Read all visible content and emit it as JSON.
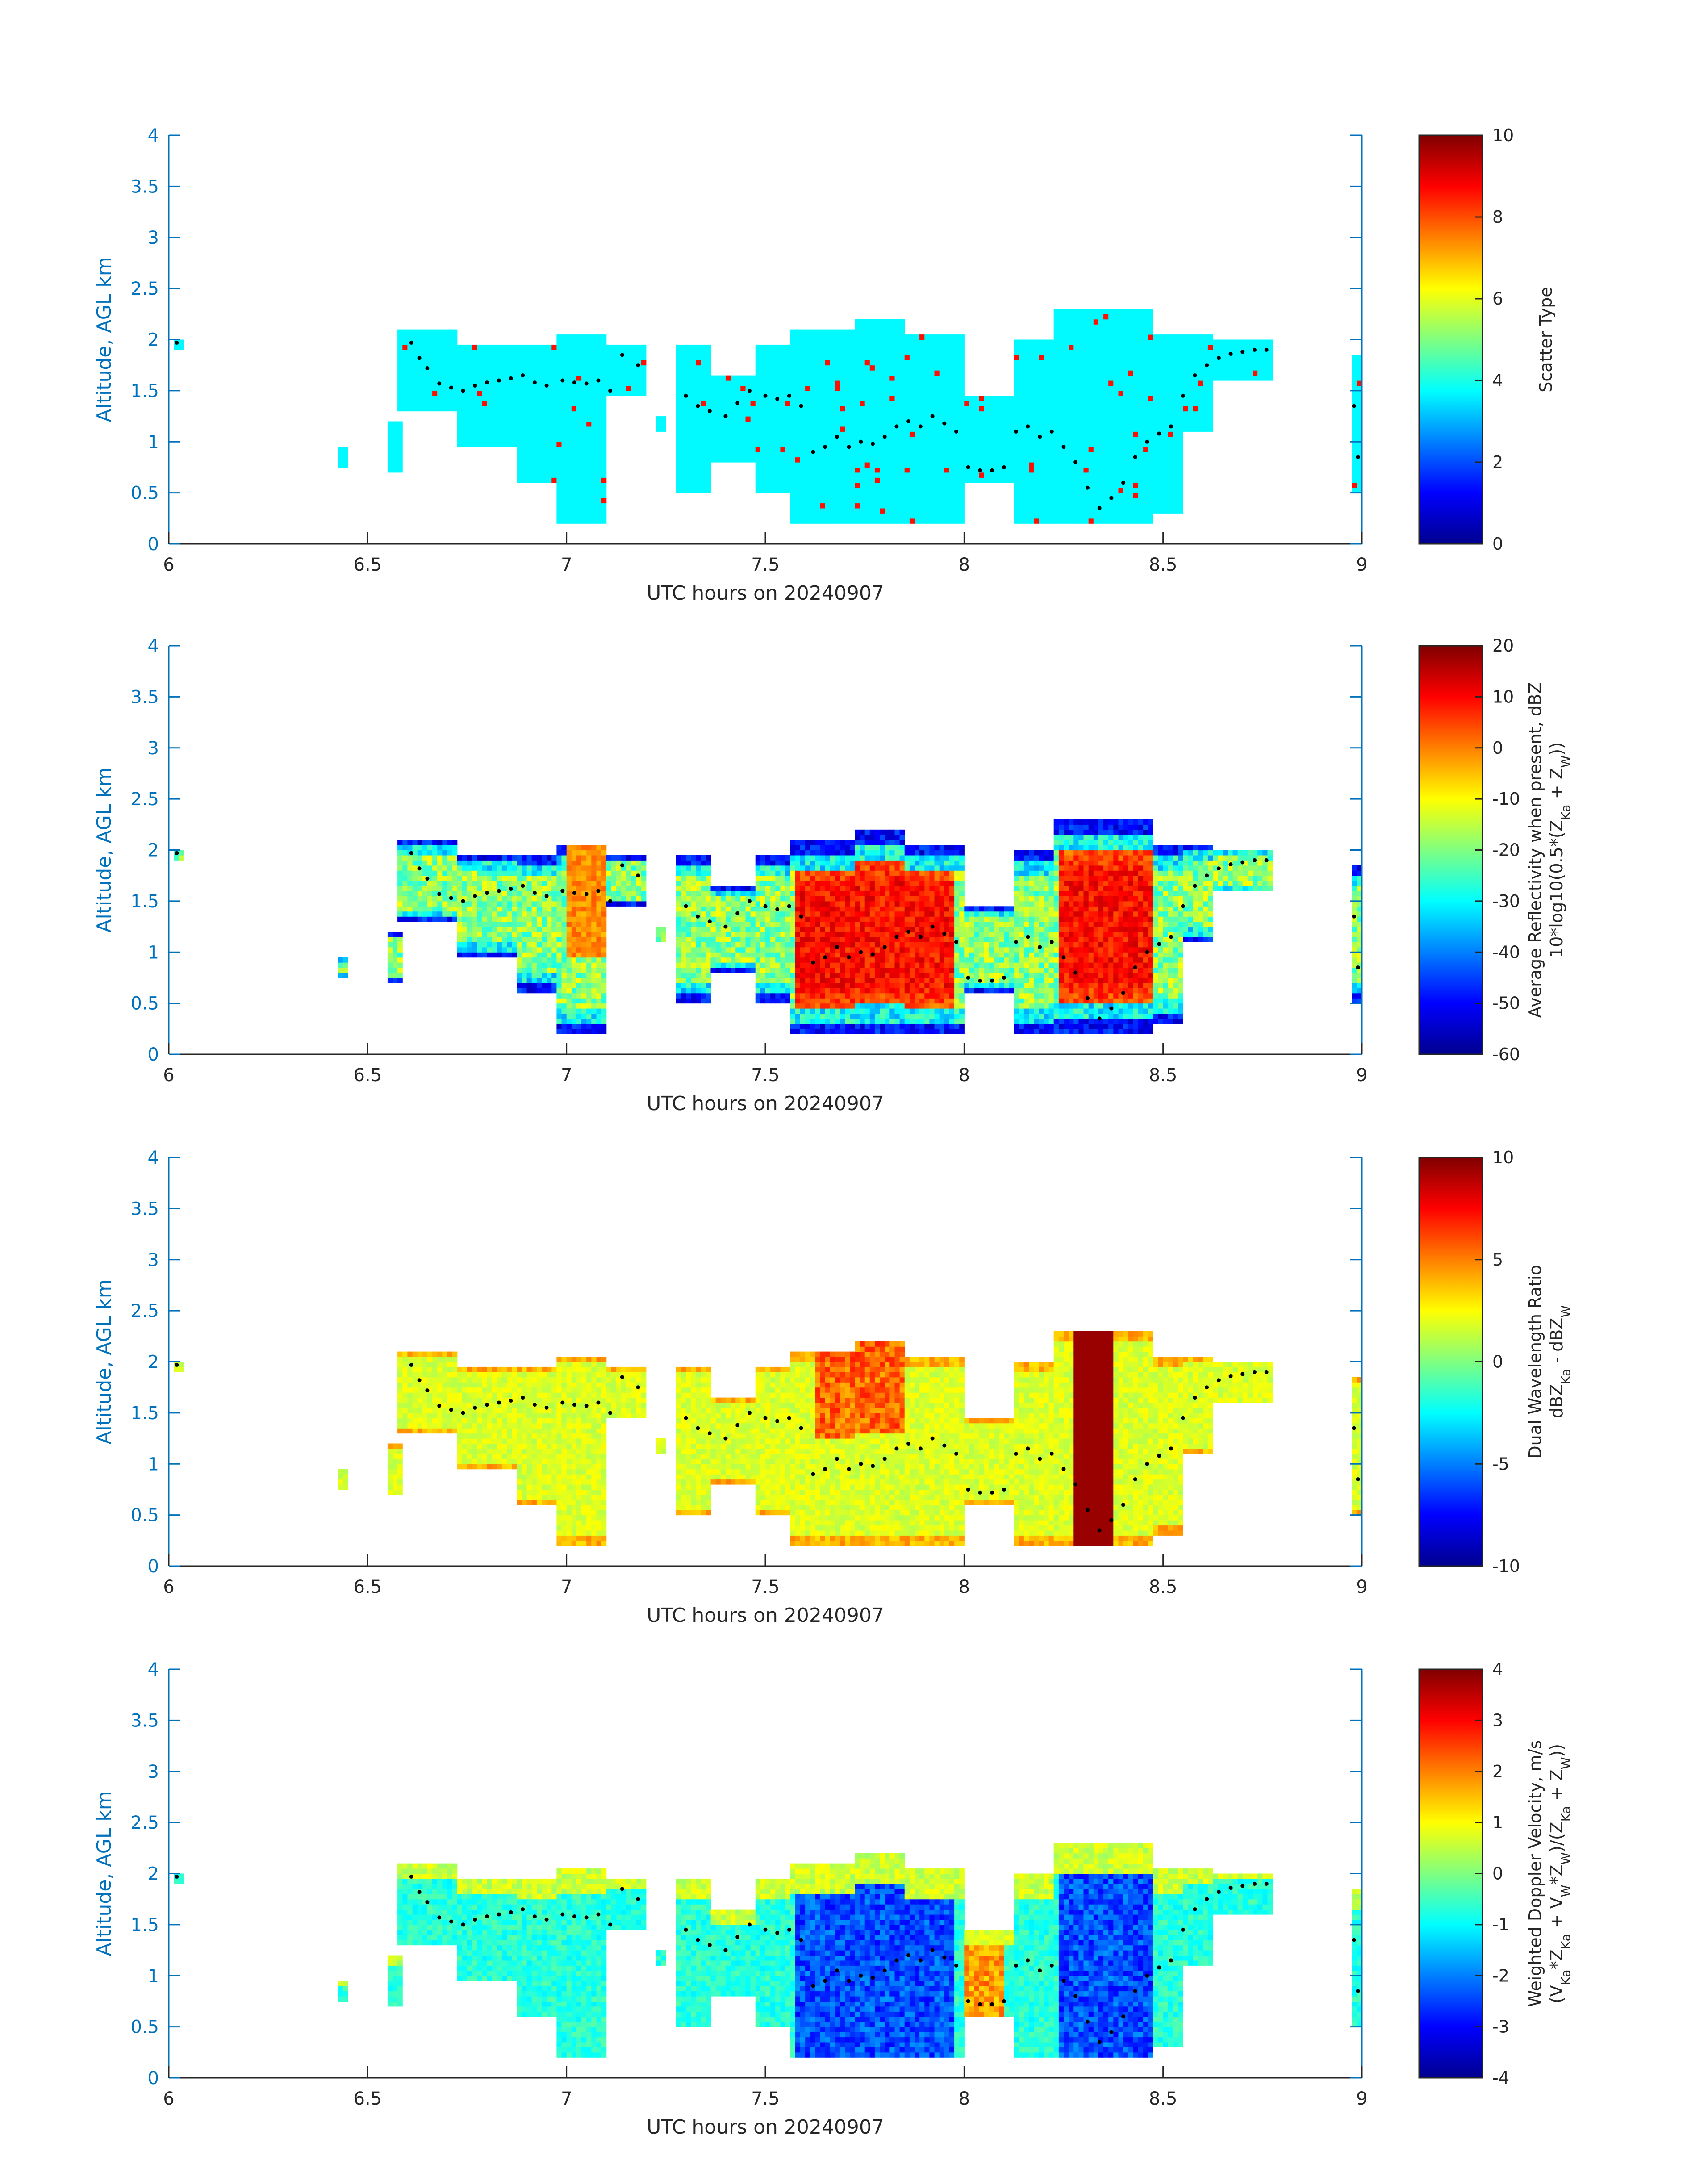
{
  "chart_data": [
    {
      "type": "heatmap",
      "xlabel": "UTC hours on 20240907",
      "ylabel": "Altitude, AGL km",
      "xlim": [
        6,
        9
      ],
      "ylim": [
        0,
        4
      ],
      "x_ticks": [
        "6",
        "6.5",
        "7",
        "7.5",
        "8",
        "8.5",
        "9"
      ],
      "y_ticks": [
        "0",
        "0.5",
        "1",
        "1.5",
        "2",
        "2.5",
        "3",
        "3.5",
        "4"
      ],
      "colorbar": {
        "label_lines": [
          "Scatter Type"
        ],
        "ticks": [
          "0",
          "2",
          "4",
          "6",
          "8",
          "10"
        ],
        "range": [
          0,
          10
        ],
        "colormap": "jet"
      },
      "field": "scatter_type",
      "dominant_value": 3.7,
      "secondary_value": 8.6
    },
    {
      "type": "heatmap",
      "xlabel": "UTC hours on 20240907",
      "ylabel": "Altitude, AGL km",
      "xlim": [
        6,
        9
      ],
      "ylim": [
        0,
        4
      ],
      "x_ticks": [
        "6",
        "6.5",
        "7",
        "7.5",
        "8",
        "8.5",
        "9"
      ],
      "y_ticks": [
        "0",
        "0.5",
        "1",
        "1.5",
        "2",
        "2.5",
        "3",
        "3.5",
        "4"
      ],
      "colorbar": {
        "label_lines": [
          "Average Reflectivity when present, dBZ",
          "10*log10(0.5*(Z_Ka + Z_W))"
        ],
        "ticks": [
          "-60",
          "-50",
          "-40",
          "-30",
          "-20",
          "-10",
          "0",
          "10",
          "20"
        ],
        "range": [
          -60,
          20
        ],
        "colormap": "jet"
      },
      "field": "reflectivity"
    },
    {
      "type": "heatmap",
      "xlabel": "UTC hours on 20240907",
      "ylabel": "Altitude, AGL km",
      "xlim": [
        6,
        9
      ],
      "ylim": [
        0,
        4
      ],
      "x_ticks": [
        "6",
        "6.5",
        "7",
        "7.5",
        "8",
        "8.5",
        "9"
      ],
      "y_ticks": [
        "0",
        "0.5",
        "1",
        "1.5",
        "2",
        "2.5",
        "3",
        "3.5",
        "4"
      ],
      "colorbar": {
        "label_lines": [
          "Dual Wavelength Ratio",
          "dBZ_Ka - dBZ_W"
        ],
        "ticks": [
          "-10",
          "-5",
          "0",
          "5",
          "10"
        ],
        "range": [
          -10,
          10
        ],
        "colormap": "jet"
      },
      "field": "dwr"
    },
    {
      "type": "heatmap",
      "xlabel": "UTC hours on 20240907",
      "ylabel": "Altitude, AGL km",
      "xlim": [
        6,
        9
      ],
      "ylim": [
        0,
        4
      ],
      "x_ticks": [
        "6",
        "6.5",
        "7",
        "7.5",
        "8",
        "8.5",
        "9"
      ],
      "y_ticks": [
        "0",
        "0.5",
        "1",
        "1.5",
        "2",
        "2.5",
        "3",
        "3.5",
        "4"
      ],
      "colorbar": {
        "label_lines": [
          "Weighted Doppler Velocity, m/s",
          "(V_Ka*Z_Ka + V_W*Z_W)/(Z_Ka + Z_W))"
        ],
        "ticks": [
          "-4",
          "-3",
          "-2",
          "-1",
          "0",
          "1",
          "2",
          "3",
          "4"
        ],
        "range": [
          -4,
          4
        ],
        "colormap": "jet"
      },
      "field": "doppler_velocity"
    }
  ],
  "cloud_segments": [
    {
      "t0": 6.01,
      "t1": 6.04,
      "bottom": 1.9,
      "top": 2.02
    },
    {
      "t0": 6.42,
      "t1": 6.45,
      "bottom": 0.75,
      "top": 0.95
    },
    {
      "t0": 6.55,
      "t1": 6.59,
      "bottom": 0.7,
      "top": 1.2
    },
    {
      "t0": 6.57,
      "t1": 6.72,
      "bottom": 1.3,
      "top": 2.08
    },
    {
      "t0": 6.72,
      "t1": 6.88,
      "bottom": 0.95,
      "top": 1.95
    },
    {
      "t0": 6.88,
      "t1": 6.98,
      "bottom": 0.6,
      "top": 1.95
    },
    {
      "t0": 6.98,
      "t1": 7.1,
      "bottom": 0.2,
      "top": 2.07
    },
    {
      "t0": 7.1,
      "t1": 7.2,
      "bottom": 1.45,
      "top": 1.95
    },
    {
      "t0": 7.22,
      "t1": 7.25,
      "bottom": 1.1,
      "top": 1.25
    },
    {
      "t0": 7.28,
      "t1": 7.36,
      "bottom": 0.5,
      "top": 1.95
    },
    {
      "t0": 7.36,
      "t1": 7.48,
      "bottom": 0.8,
      "top": 1.65
    },
    {
      "t0": 7.48,
      "t1": 7.56,
      "bottom": 0.5,
      "top": 1.95
    },
    {
      "t0": 7.56,
      "t1": 7.72,
      "bottom": 0.2,
      "top": 2.08
    },
    {
      "t0": 7.72,
      "t1": 7.85,
      "bottom": 0.2,
      "top": 2.18
    },
    {
      "t0": 7.85,
      "t1": 8.0,
      "bottom": 0.2,
      "top": 2.05
    },
    {
      "t0": 8.0,
      "t1": 8.12,
      "bottom": 0.6,
      "top": 1.45
    },
    {
      "t0": 8.12,
      "t1": 8.22,
      "bottom": 0.2,
      "top": 2.0
    },
    {
      "t0": 8.22,
      "t1": 8.35,
      "bottom": 0.2,
      "top": 2.3
    },
    {
      "t0": 8.35,
      "t1": 8.48,
      "bottom": 0.2,
      "top": 2.3
    },
    {
      "t0": 8.48,
      "t1": 8.55,
      "bottom": 0.3,
      "top": 2.05
    },
    {
      "t0": 8.55,
      "t1": 8.62,
      "bottom": 1.1,
      "top": 2.05
    },
    {
      "t0": 8.62,
      "t1": 8.78,
      "bottom": 1.6,
      "top": 2.0
    },
    {
      "t0": 8.97,
      "t1": 9.0,
      "bottom": 0.5,
      "top": 1.85
    }
  ],
  "cloud_base_dots": [
    {
      "t": 6.02,
      "alt": 1.97
    },
    {
      "t": 6.61,
      "alt": 1.97
    },
    {
      "t": 6.63,
      "alt": 1.82
    },
    {
      "t": 6.65,
      "alt": 1.72
    },
    {
      "t": 6.68,
      "alt": 1.57
    },
    {
      "t": 6.71,
      "alt": 1.53
    },
    {
      "t": 6.74,
      "alt": 1.5
    },
    {
      "t": 6.77,
      "alt": 1.55
    },
    {
      "t": 6.8,
      "alt": 1.58
    },
    {
      "t": 6.83,
      "alt": 1.6
    },
    {
      "t": 6.86,
      "alt": 1.62
    },
    {
      "t": 6.89,
      "alt": 1.65
    },
    {
      "t": 6.92,
      "alt": 1.58
    },
    {
      "t": 6.95,
      "alt": 1.55
    },
    {
      "t": 6.99,
      "alt": 1.6
    },
    {
      "t": 7.02,
      "alt": 1.58
    },
    {
      "t": 7.05,
      "alt": 1.57
    },
    {
      "t": 7.08,
      "alt": 1.6
    },
    {
      "t": 7.11,
      "alt": 1.5
    },
    {
      "t": 7.14,
      "alt": 1.85
    },
    {
      "t": 7.18,
      "alt": 1.75
    },
    {
      "t": 7.3,
      "alt": 1.45
    },
    {
      "t": 7.33,
      "alt": 1.35
    },
    {
      "t": 7.36,
      "alt": 1.3
    },
    {
      "t": 7.4,
      "alt": 1.25
    },
    {
      "t": 7.43,
      "alt": 1.38
    },
    {
      "t": 7.46,
      "alt": 1.5
    },
    {
      "t": 7.5,
      "alt": 1.45
    },
    {
      "t": 7.53,
      "alt": 1.42
    },
    {
      "t": 7.56,
      "alt": 1.45
    },
    {
      "t": 7.59,
      "alt": 1.35
    },
    {
      "t": 7.62,
      "alt": 0.9
    },
    {
      "t": 7.65,
      "alt": 0.95
    },
    {
      "t": 7.68,
      "alt": 1.05
    },
    {
      "t": 7.71,
      "alt": 0.95
    },
    {
      "t": 7.74,
      "alt": 1.0
    },
    {
      "t": 7.77,
      "alt": 0.98
    },
    {
      "t": 7.8,
      "alt": 1.05
    },
    {
      "t": 7.83,
      "alt": 1.15
    },
    {
      "t": 7.86,
      "alt": 1.2
    },
    {
      "t": 7.89,
      "alt": 1.15
    },
    {
      "t": 7.92,
      "alt": 1.25
    },
    {
      "t": 7.95,
      "alt": 1.18
    },
    {
      "t": 7.98,
      "alt": 1.1
    },
    {
      "t": 8.01,
      "alt": 0.75
    },
    {
      "t": 8.04,
      "alt": 0.72
    },
    {
      "t": 8.07,
      "alt": 0.72
    },
    {
      "t": 8.1,
      "alt": 0.75
    },
    {
      "t": 8.13,
      "alt": 1.1
    },
    {
      "t": 8.16,
      "alt": 1.15
    },
    {
      "t": 8.19,
      "alt": 1.05
    },
    {
      "t": 8.22,
      "alt": 1.1
    },
    {
      "t": 8.25,
      "alt": 0.95
    },
    {
      "t": 8.28,
      "alt": 0.8
    },
    {
      "t": 8.31,
      "alt": 0.55
    },
    {
      "t": 8.34,
      "alt": 0.35
    },
    {
      "t": 8.37,
      "alt": 0.45
    },
    {
      "t": 8.4,
      "alt": 0.6
    },
    {
      "t": 8.43,
      "alt": 0.85
    },
    {
      "t": 8.46,
      "alt": 1.0
    },
    {
      "t": 8.49,
      "alt": 1.08
    },
    {
      "t": 8.52,
      "alt": 1.15
    },
    {
      "t": 8.55,
      "alt": 1.45
    },
    {
      "t": 8.58,
      "alt": 1.65
    },
    {
      "t": 8.61,
      "alt": 1.75
    },
    {
      "t": 8.64,
      "alt": 1.82
    },
    {
      "t": 8.67,
      "alt": 1.86
    },
    {
      "t": 8.7,
      "alt": 1.88
    },
    {
      "t": 8.73,
      "alt": 1.9
    },
    {
      "t": 8.76,
      "alt": 1.9
    },
    {
      "t": 8.98,
      "alt": 1.35
    },
    {
      "t": 8.99,
      "alt": 0.85
    }
  ]
}
